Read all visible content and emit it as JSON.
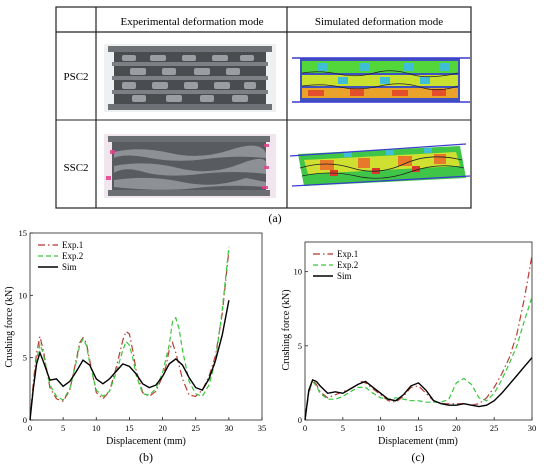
{
  "table": {
    "headers": [
      "",
      "Experimental deformation mode",
      "Simulated deformation mode"
    ],
    "rows": [
      {
        "label": "PSC2"
      },
      {
        "label": "SSC2"
      }
    ]
  },
  "captions": {
    "a": "(a)",
    "b": "(b)",
    "c": "(c)"
  },
  "colors": {
    "exp1": "#b5342b",
    "exp2": "#39c639",
    "sim": "#000000"
  },
  "chart_data": [
    {
      "type": "line",
      "xlabel": "Displacement (mm)",
      "ylabel": "Crushing force (kN)",
      "xlim": [
        0,
        35
      ],
      "ylim": [
        0,
        15
      ],
      "xticks": [
        0,
        5,
        10,
        15,
        20,
        25,
        30,
        35
      ],
      "yticks": [
        0,
        5,
        10,
        15
      ],
      "legend_position": "top-left",
      "series": [
        {
          "name": "Exp.1",
          "style": "dashdot",
          "color": "#b5342b",
          "x": [
            0,
            0.5,
            1,
            1.5,
            2,
            3,
            4,
            5,
            6,
            7,
            7.5,
            8,
            8.5,
            9,
            10,
            11,
            12,
            13,
            14,
            14.5,
            15,
            15.5,
            16,
            17,
            18,
            19,
            20,
            20.5,
            21,
            21.5,
            22,
            23,
            24,
            25,
            26,
            27,
            28,
            29,
            30
          ],
          "y": [
            0,
            3,
            5.4,
            6.7,
            5.6,
            2.6,
            1.7,
            1.5,
            2.4,
            4.9,
            6.2,
            6.6,
            6.2,
            4.8,
            2.2,
            1.7,
            2.3,
            4.2,
            6.4,
            7.1,
            6.9,
            5.6,
            4,
            2.2,
            1.9,
            2.3,
            3.5,
            4.3,
            5.6,
            6.2,
            5.4,
            3.3,
            2,
            1.9,
            2.4,
            3.5,
            5.2,
            8.5,
            13.6
          ]
        },
        {
          "name": "Exp.2",
          "style": "dashed",
          "color": "#39c639",
          "x": [
            0,
            0.5,
            1,
            1.5,
            2,
            3,
            4,
            5,
            6,
            7,
            7.5,
            8,
            8.5,
            9,
            10,
            11,
            12,
            13,
            14,
            14.5,
            15,
            15.5,
            16,
            17,
            18,
            19,
            20,
            21,
            21.5,
            22,
            22.5,
            23,
            24,
            25,
            26,
            27,
            28,
            29,
            30
          ],
          "y": [
            0,
            2.6,
            4.8,
            6.1,
            5.3,
            2.8,
            1.9,
            1.6,
            2.5,
            4.7,
            6,
            6.5,
            6,
            4.6,
            2.4,
            1.9,
            2.3,
            3.8,
            5.6,
            6.3,
            6,
            5,
            3.6,
            2.1,
            2,
            2.5,
            3.8,
            6,
            7.9,
            8.2,
            7.3,
            5.6,
            3.1,
            2.1,
            1.9,
            2.8,
            4.8,
            8.8,
            13.9
          ]
        },
        {
          "name": "Sim",
          "style": "solid",
          "color": "#000000",
          "x": [
            0,
            0.5,
            1,
            1.5,
            2,
            3,
            4,
            5,
            6,
            7,
            8,
            9,
            10,
            11,
            12,
            13,
            14,
            15,
            16,
            17,
            18,
            19,
            20,
            21,
            22,
            23,
            24,
            25,
            26,
            27,
            28,
            29,
            30
          ],
          "y": [
            0,
            2.5,
            4.5,
            5.4,
            4.7,
            3.2,
            3.3,
            2.7,
            3.1,
            3.9,
            4.8,
            4.4,
            3.3,
            2.9,
            3.3,
            3.9,
            4.5,
            4.3,
            3.7,
            2.9,
            2.6,
            2.8,
            3.5,
            4.5,
            4.9,
            4.4,
            3.4,
            2.6,
            2.4,
            3.3,
            4.8,
            6.8,
            9.6
          ]
        }
      ]
    },
    {
      "type": "line",
      "xlabel": "Displacement (mm)",
      "ylabel": "Crushing force (kN)",
      "xlim": [
        0,
        30
      ],
      "ylim": [
        0,
        12
      ],
      "xticks": [
        0,
        5,
        10,
        15,
        20,
        25,
        30
      ],
      "yticks": [
        0,
        5,
        10
      ],
      "legend_position": "top-left",
      "series": [
        {
          "name": "Exp.1",
          "style": "dashdot",
          "color": "#b5342b",
          "x": [
            0,
            0.5,
            1,
            1.5,
            2,
            3,
            4,
            5,
            6,
            7,
            7.5,
            8,
            9,
            10,
            11,
            12,
            13,
            14,
            15,
            16,
            17,
            18,
            19,
            20,
            21,
            22,
            23,
            24,
            25,
            26,
            27,
            28,
            29,
            30
          ],
          "y": [
            0,
            1.8,
            2.7,
            2.4,
            1.9,
            1.5,
            1.7,
            1.9,
            2.1,
            2.4,
            2.6,
            2.5,
            2.1,
            1.7,
            1.3,
            1.2,
            1.6,
            2.2,
            2.3,
            1.8,
            1.3,
            1.1,
            1.1,
            1.1,
            1.1,
            1.0,
            1.1,
            1.5,
            2.2,
            3.1,
            4.2,
            5.8,
            8.2,
            11.1
          ]
        },
        {
          "name": "Exp.2",
          "style": "dashed",
          "color": "#39c639",
          "x": [
            0,
            0.5,
            1,
            1.5,
            2,
            3,
            4,
            5,
            6,
            7,
            8,
            9,
            10,
            11,
            12,
            13,
            14,
            15,
            16,
            17,
            18,
            19,
            20,
            21,
            22,
            23,
            24,
            25,
            26,
            27,
            28,
            29,
            30
          ],
          "y": [
            0,
            1.9,
            2.6,
            2.3,
            1.8,
            1.4,
            1.4,
            1.6,
            1.9,
            2.2,
            2.2,
            1.8,
            1.5,
            1.4,
            1.5,
            1.4,
            1.3,
            1.3,
            1.2,
            1.2,
            1.2,
            1.4,
            2.5,
            2.8,
            2.4,
            1.5,
            1.3,
            1.8,
            2.7,
            3.8,
            5.0,
            6.7,
            8.3
          ]
        },
        {
          "name": "Sim",
          "style": "solid",
          "color": "#000000",
          "x": [
            0,
            0.5,
            1,
            1.5,
            2,
            3,
            4,
            5,
            6,
            7,
            8,
            9,
            10,
            11,
            12,
            13,
            14,
            15,
            16,
            17,
            18,
            19,
            20,
            21,
            22,
            23,
            24,
            25,
            26,
            27,
            28,
            29,
            30
          ],
          "y": [
            0,
            2.0,
            2.7,
            2.6,
            2.3,
            1.8,
            1.9,
            1.8,
            2.1,
            2.4,
            2.6,
            2.2,
            1.8,
            1.4,
            1.3,
            1.7,
            2.3,
            2.5,
            2.0,
            1.3,
            1.1,
            1.0,
            1.0,
            1.1,
            1.0,
            0.9,
            1.0,
            1.3,
            1.8,
            2.4,
            3.0,
            3.6,
            4.2
          ]
        }
      ]
    }
  ]
}
